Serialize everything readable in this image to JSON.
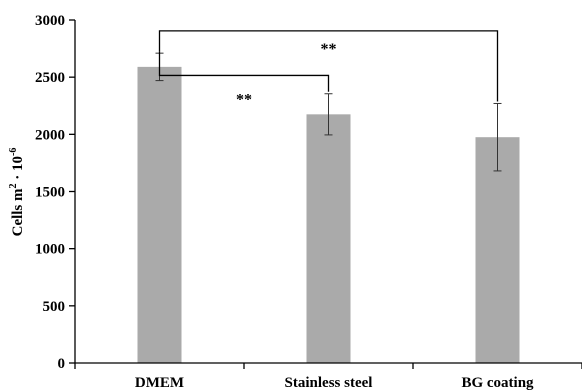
{
  "chart_data": {
    "type": "bar",
    "title": "",
    "xlabel": "",
    "ylabel": "Cells m",
    "ylabel_sup_a": "2",
    "ylabel_mid": " · 10",
    "ylabel_sup_b": "-6",
    "categories": [
      "DMEM",
      "Stainless steel",
      "BG coating"
    ],
    "values": [
      2590,
      2175,
      1975
    ],
    "errors": [
      120,
      180,
      295
    ],
    "ylim": [
      0,
      3000
    ],
    "yticks": [
      0,
      500,
      1000,
      1500,
      2000,
      2500,
      3000
    ],
    "grid": false,
    "bar_color": "#aaaaaa",
    "significance": [
      {
        "from": 0,
        "to": 1,
        "label": "**",
        "level": 2515
      },
      {
        "from": 0,
        "to": 2,
        "label": "**",
        "level": 2905
      }
    ]
  }
}
